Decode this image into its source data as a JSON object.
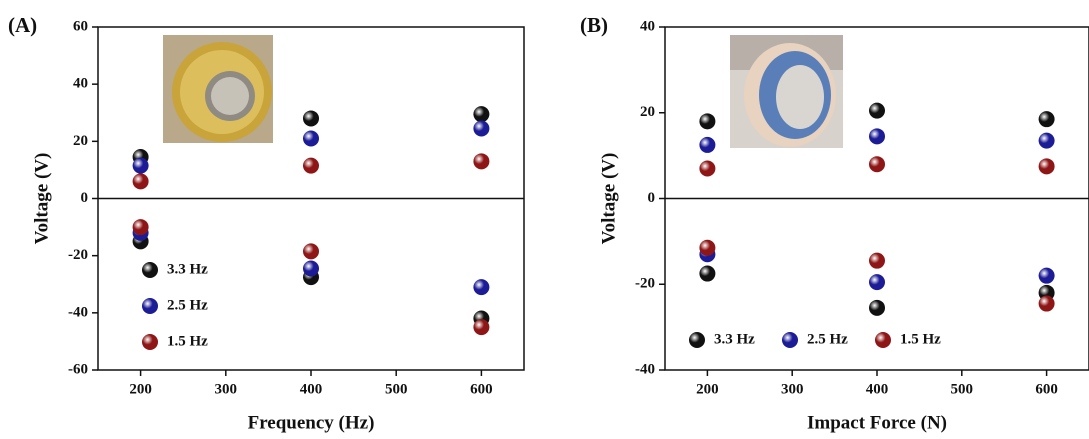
{
  "chart_data": [
    {
      "type": "scatter",
      "panel": "(A)",
      "x_label": "Frequency (Hz)",
      "y_label": "Voltage (V)",
      "xlim": [
        150,
        650
      ],
      "xticks": [
        200,
        300,
        400,
        500,
        600
      ],
      "ylim": [
        -60,
        60
      ],
      "yticks": [
        -60,
        -40,
        -20,
        0,
        20,
        40,
        60
      ],
      "legend": "lower left",
      "x": [
        200,
        400,
        600,
        200,
        400,
        600
      ],
      "series": [
        {
          "name": "3.3 Hz",
          "color": "#111111",
          "values": [
            14.5,
            28,
            29.5,
            -15,
            -27.5,
            -42
          ]
        },
        {
          "name": "2.5 Hz",
          "color": "#1c1c96",
          "values": [
            11.5,
            21,
            24.5,
            -12,
            -24.5,
            -31
          ]
        },
        {
          "name": "1.5 Hz",
          "color": "#8e1616",
          "values": [
            6,
            11.5,
            13,
            -10,
            -18.5,
            -45
          ]
        }
      ]
    },
    {
      "type": "scatter",
      "panel": "(B)",
      "x_label": "Impact Force (N)",
      "y_label": "Voltage (V)",
      "xlim": [
        150,
        650
      ],
      "xticks": [
        200,
        300,
        400,
        500,
        600
      ],
      "ylim": [
        -40,
        40
      ],
      "yticks": [
        -40,
        -20,
        0,
        20,
        40
      ],
      "legend": "lower center",
      "x": [
        200,
        400,
        600,
        200,
        400,
        600
      ],
      "series": [
        {
          "name": "3.3 Hz",
          "color": "#111111",
          "values": [
            18,
            20.5,
            18.5,
            -17.5,
            -25.5,
            -22
          ]
        },
        {
          "name": "2.5 Hz",
          "color": "#1c1c96",
          "values": [
            12.5,
            14.5,
            13.5,
            -13,
            -19.5,
            -18
          ]
        },
        {
          "name": "1.5 Hz",
          "color": "#8e1616",
          "values": [
            7,
            8,
            7.5,
            -11.5,
            -14.5,
            -24.5
          ]
        }
      ]
    }
  ]
}
